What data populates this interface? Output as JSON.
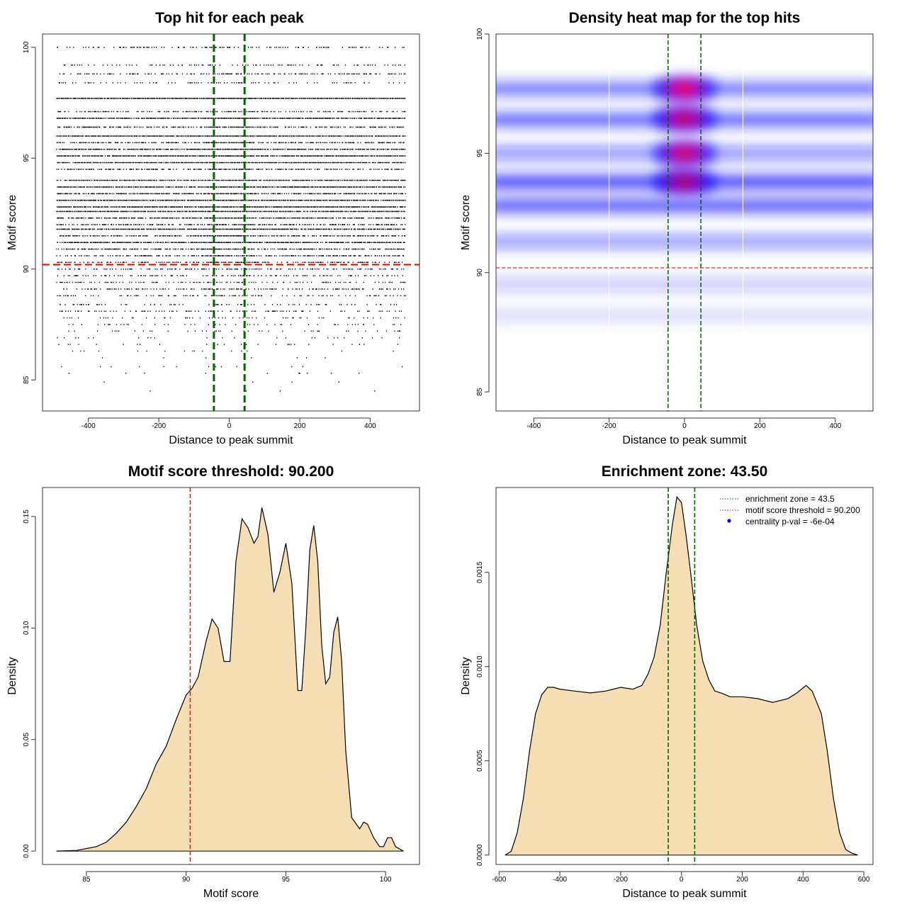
{
  "chart_data": [
    {
      "panel": "top-left",
      "type": "scatter",
      "title": "Top hit for each peak",
      "xlabel": "Distance to peak summit",
      "ylabel": "Motif score",
      "xlim": [
        -530,
        540
      ],
      "ylim": [
        83.6,
        100.6
      ],
      "xticks": [
        -400,
        -200,
        0,
        200,
        400
      ],
      "yticks": [
        85,
        90,
        95,
        100
      ],
      "points_x_range": [
        -490,
        500
      ],
      "threshold_line": {
        "value": 90.2,
        "color": "#dd0000"
      },
      "zone_lines": {
        "values": [
          -43.5,
          43.5
        ],
        "color": "#006400"
      },
      "points_summary": "dense horizontal bands of motif hits at discrete scores between ~84 and 100; rows above 90 nearly continuous, sparse below 88"
    },
    {
      "panel": "top-right",
      "type": "heatmap",
      "title": "Density heat map for the top hits",
      "xlabel": "Distance to peak summit",
      "ylabel": "Motif score",
      "xlim": [
        -500,
        500
      ],
      "ylim": [
        84.2,
        100
      ],
      "xticks": [
        -400,
        -200,
        0,
        200,
        400
      ],
      "yticks": [
        85,
        90,
        95,
        100
      ],
      "threshold_line": {
        "value": 90.2,
        "color": "#dd3333"
      },
      "zone_lines": {
        "values": [
          -43.5,
          43.5
        ],
        "color": "#006400"
      },
      "white_lines": [
        -200,
        155
      ],
      "bands": [
        {
          "score": 97.7,
          "strength": 0.75
        },
        {
          "score": 96.4,
          "strength": 0.85
        },
        {
          "score": 95.0,
          "strength": 0.6
        },
        {
          "score": 93.8,
          "strength": 1.0
        },
        {
          "score": 92.8,
          "strength": 0.9
        },
        {
          "score": 91.3,
          "strength": 0.55
        },
        {
          "score": 89.5,
          "strength": 0.3
        },
        {
          "score": 88.2,
          "strength": 0.18
        }
      ],
      "hotspots": [
        {
          "x": 0,
          "score": 97.7,
          "strength": 1.0
        },
        {
          "x": 0,
          "score": 96.45,
          "strength": 0.85
        },
        {
          "x": 0,
          "score": 95.0,
          "strength": 0.9
        },
        {
          "x": 0,
          "score": 93.8,
          "strength": 0.75
        }
      ]
    },
    {
      "panel": "bottom-left",
      "type": "area",
      "title": "Motif score threshold: 90.200",
      "xlabel": "Motif score",
      "ylabel": "Density",
      "xlim": [
        82.8,
        101.7
      ],
      "ylim": [
        -0.006,
        0.163
      ],
      "xticks": [
        85,
        90,
        95,
        100
      ],
      "yticks": [
        0.0,
        0.05,
        0.1,
        0.15
      ],
      "ytick_labels": [
        "0.00",
        "0.05",
        "0.10",
        "0.15"
      ],
      "fill_color": "#f5deb3",
      "threshold_line": {
        "value": 90.2,
        "color": "#dd0000"
      },
      "x": [
        83.5,
        84.5,
        85.5,
        86.0,
        86.5,
        87.0,
        87.5,
        88.0,
        88.5,
        89.0,
        89.5,
        90.0,
        90.3,
        90.6,
        91.0,
        91.3,
        91.6,
        91.9,
        92.2,
        92.5,
        92.8,
        93.1,
        93.4,
        93.6,
        93.8,
        94.1,
        94.4,
        94.7,
        95.0,
        95.3,
        95.6,
        95.8,
        96.0,
        96.2,
        96.4,
        96.6,
        96.8,
        97.0,
        97.2,
        97.4,
        97.6,
        97.8,
        98.0,
        98.3,
        98.7,
        98.9,
        99.1,
        99.4,
        99.7,
        99.9,
        100.1,
        100.3,
        100.5,
        100.9
      ],
      "y": [
        0.0,
        0.0003,
        0.002,
        0.004,
        0.008,
        0.013,
        0.02,
        0.028,
        0.039,
        0.047,
        0.059,
        0.07,
        0.073,
        0.078,
        0.094,
        0.104,
        0.1,
        0.085,
        0.085,
        0.13,
        0.149,
        0.145,
        0.138,
        0.141,
        0.154,
        0.142,
        0.116,
        0.125,
        0.138,
        0.12,
        0.072,
        0.072,
        0.1,
        0.135,
        0.146,
        0.13,
        0.092,
        0.075,
        0.078,
        0.098,
        0.105,
        0.085,
        0.045,
        0.015,
        0.01,
        0.013,
        0.012,
        0.006,
        0.002,
        0.002,
        0.006,
        0.006,
        0.002,
        0.0
      ]
    },
    {
      "panel": "bottom-right",
      "type": "area",
      "title": "Enrichment zone: 43.50",
      "xlabel": "Distance to peak summit",
      "ylabel": "Density",
      "xlim": [
        -610,
        630
      ],
      "ylim": [
        -5e-05,
        0.00195
      ],
      "xticks": [
        -600,
        -400,
        -200,
        0,
        200,
        400,
        600
      ],
      "yticks": [
        0.0,
        0.0005,
        0.001,
        0.0015
      ],
      "ytick_labels": [
        "0.0000",
        "0.0005",
        "0.0010",
        "0.0015"
      ],
      "fill_color": "#f5deb3",
      "zone_lines": {
        "values": [
          -43.5,
          43.5
        ],
        "color": "#006400"
      },
      "x": [
        -580,
        -560,
        -540,
        -520,
        -500,
        -480,
        -460,
        -440,
        -420,
        -400,
        -350,
        -300,
        -250,
        -200,
        -160,
        -130,
        -110,
        -90,
        -70,
        -50,
        -30,
        -15,
        0,
        15,
        30,
        50,
        70,
        90,
        110,
        130,
        160,
        200,
        250,
        300,
        350,
        380,
        410,
        430,
        460,
        480,
        500,
        520,
        540,
        560,
        580
      ],
      "y": [
        0.0,
        2e-05,
        0.00012,
        0.0003,
        0.00055,
        0.00075,
        0.00085,
        0.00089,
        0.00089,
        0.00088,
        0.00087,
        0.00086,
        0.00087,
        0.00089,
        0.00088,
        0.0009,
        0.00096,
        0.00105,
        0.00122,
        0.0015,
        0.00175,
        0.0019,
        0.00187,
        0.0017,
        0.0015,
        0.00122,
        0.00103,
        0.00093,
        0.00087,
        0.00086,
        0.00084,
        0.00084,
        0.00083,
        0.00081,
        0.00083,
        0.00086,
        0.0009,
        0.00087,
        0.00075,
        0.00055,
        0.0003,
        0.00012,
        3e-05,
        1e-05,
        0.0
      ],
      "legend": [
        {
          "label": "enrichment zone = 43.5",
          "style": "dotted",
          "color": "#006400"
        },
        {
          "label": "motif score threshold = 90.200",
          "style": "dotted",
          "color": "#dd0000"
        },
        {
          "label": "centrality p-val = -6e-04",
          "style": "point",
          "color": "#0000ff"
        }
      ]
    }
  ]
}
